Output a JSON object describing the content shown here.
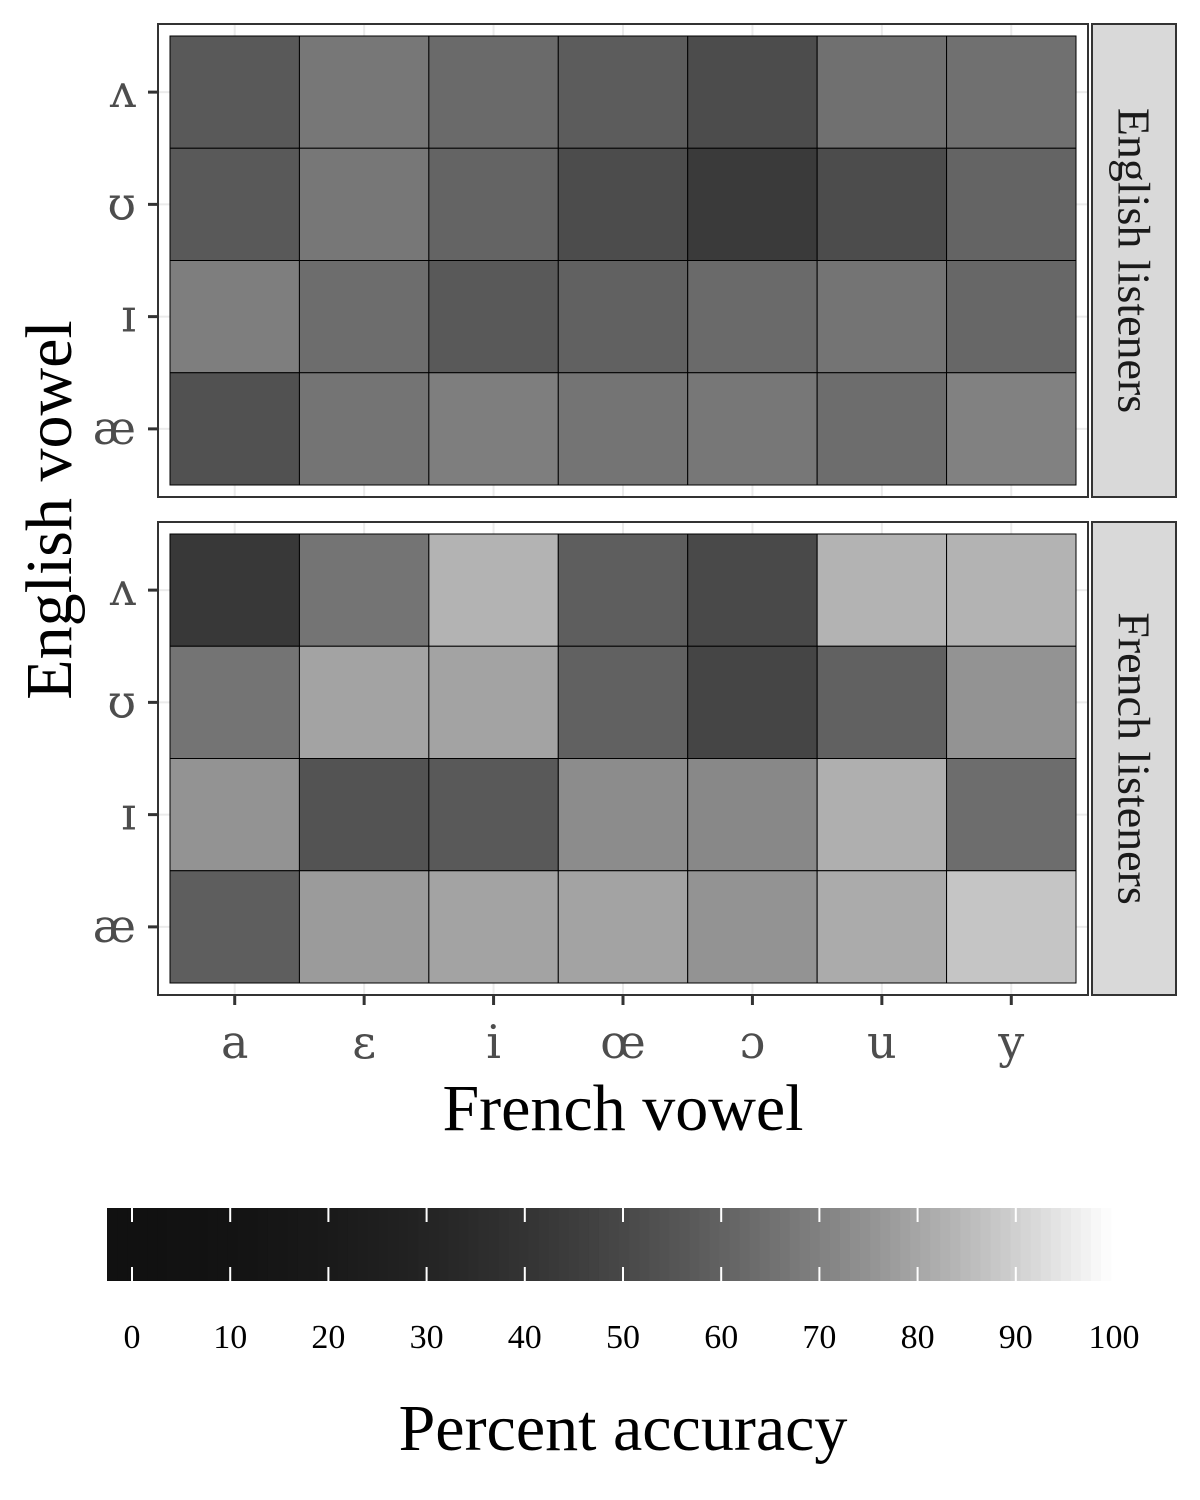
{
  "chart_data": {
    "type": "heatmap",
    "xlabel": "French vowel",
    "ylabel": "English vowel",
    "x_categories": [
      "a",
      "ɛ",
      "i",
      "œ",
      "ɔ",
      "u",
      "y"
    ],
    "y_categories": [
      "ʌ",
      "ʊ",
      "ɪ",
      "æ"
    ],
    "panels": [
      {
        "name": "English listeners",
        "values": [
          [
            58,
            68,
            64,
            59,
            53,
            66,
            66
          ],
          [
            58,
            68,
            62,
            53,
            45,
            53,
            62
          ],
          [
            70,
            65,
            58,
            61,
            64,
            67,
            63
          ],
          [
            55,
            67,
            70,
            67,
            68,
            65,
            71
          ]
        ]
      },
      {
        "name": "French listeners",
        "values": [
          [
            44,
            67,
            84,
            60,
            52,
            84,
            84
          ],
          [
            67,
            80,
            80,
            61,
            50,
            61,
            76
          ],
          [
            76,
            56,
            58,
            74,
            73,
            83,
            65
          ],
          [
            60,
            78,
            80,
            80,
            76,
            82,
            88
          ]
        ]
      }
    ],
    "colorbar": {
      "title": "Percent accuracy",
      "range": [
        0,
        100
      ],
      "ticks": [
        "0",
        "10",
        "20",
        "30",
        "40",
        "50",
        "60",
        "70",
        "80",
        "90",
        "100"
      ],
      "low_color": "#111111",
      "high_color": "#ffffff",
      "position": "bottom"
    },
    "grid": true
  }
}
